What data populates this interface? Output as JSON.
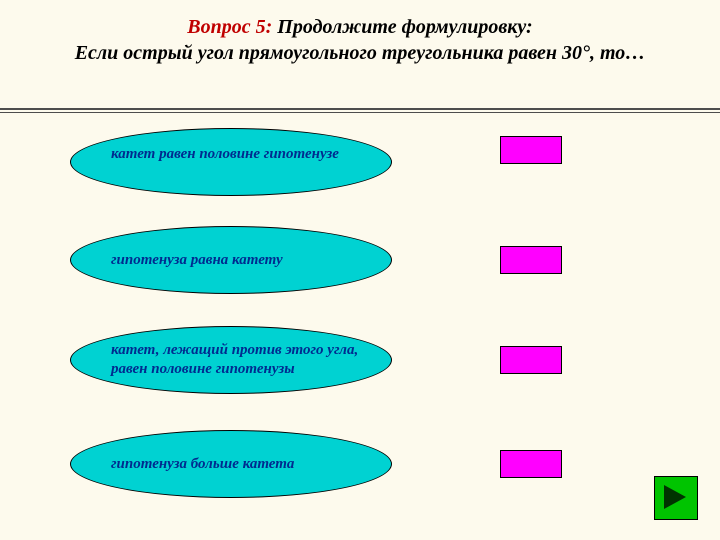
{
  "title": {
    "question": "Вопрос 5:",
    "prompt_line1": " Продолжите формулировку:",
    "prompt_line2": "Если острый угол прямоугольного треугольника равен 30°, то…"
  },
  "options": [
    {
      "text": "катет равен половине гипотенузе"
    },
    {
      "text": "гипотенуза равна катету"
    },
    {
      "text": "катет, лежащий против этого угла, равен половине гипотенузы"
    },
    {
      "text": "гипотенуза больше катета"
    }
  ],
  "colors": {
    "bubble_fill": "#00d2d2",
    "bubble_text": "#002b8f",
    "result_box": "#ff00ff",
    "nav_fill": "#00c400",
    "nav_arrow": "#003300",
    "background": "#fdfaed",
    "title_q": "#c00000",
    "rule": "#4d4d4d"
  }
}
